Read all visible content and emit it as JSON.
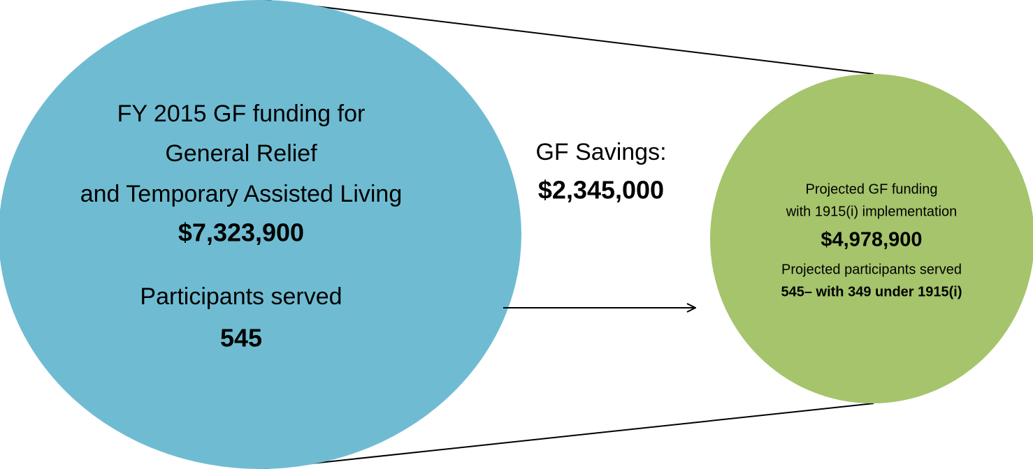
{
  "left": {
    "lines": [
      "FY 2015 GF funding for",
      "General Relief",
      "and Temporary Assisted Living"
    ],
    "amount": "$7,323,900",
    "participants_label": "Participants served",
    "participants": "545"
  },
  "center": {
    "label": "GF Savings:",
    "amount": "$2,345,000"
  },
  "right": {
    "lines": [
      "Projected GF funding",
      "with 1915(i) implementation"
    ],
    "amount": "$4,978,900",
    "participants_label": "Projected participants served",
    "participants": "545– with 349 under 1915(i)"
  }
}
